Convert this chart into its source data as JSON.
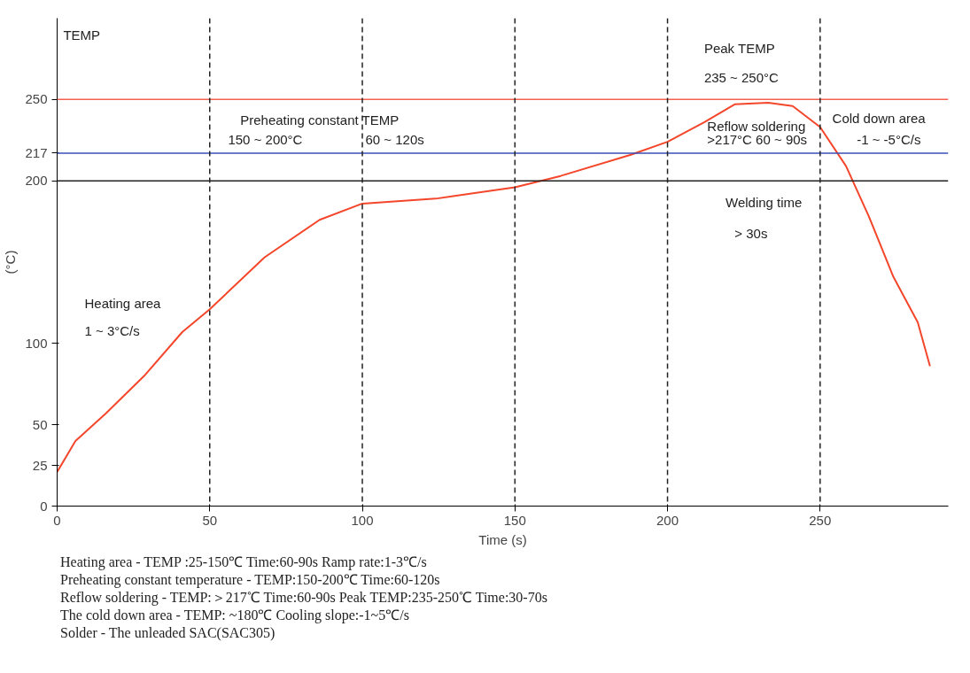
{
  "chart_data": {
    "type": "line",
    "ylabel": "(°C)",
    "xlabel": "Time (s)",
    "x": [
      0,
      6,
      16,
      28.5,
      41,
      50,
      68,
      86,
      100,
      124,
      150,
      165,
      188,
      200,
      212,
      222,
      233,
      241,
      250,
      258.5,
      266,
      274,
      282,
      286
    ],
    "series": [
      {
        "color": "#f4462a",
        "values": [
          21,
          40,
          57,
          80,
          107,
          121,
          153,
          176,
          186,
          189,
          196,
          203,
          216,
          224,
          236,
          247,
          248,
          246,
          233,
          209,
          178,
          141,
          113,
          86
        ]
      }
    ],
    "xlim": [
      0,
      292
    ],
    "ylim": [
      0,
      300
    ],
    "xticks": [
      0,
      50,
      100,
      150,
      200,
      250
    ],
    "yticks": [
      0,
      25,
      50,
      100,
      200,
      217,
      250
    ],
    "grid": false,
    "marker": "none",
    "line_style": "solid",
    "ref_lines": [
      {
        "axis": "y",
        "value": 250,
        "label": null,
        "color": "#f4614c",
        "line_style": "solid"
      },
      {
        "axis": "y",
        "value": 217,
        "label": null,
        "color": "#3a4fb8",
        "line_style": "solid"
      },
      {
        "axis": "y",
        "value": 200,
        "label": null,
        "color": "#222222",
        "line_style": "solid"
      },
      {
        "axis": "x",
        "value": 50,
        "label": null,
        "color": "#222222",
        "line_style": "dashed"
      },
      {
        "axis": "x",
        "value": 100,
        "label": null,
        "color": "#222222",
        "line_style": "dashed"
      },
      {
        "axis": "x",
        "value": 150,
        "label": null,
        "color": "#222222",
        "line_style": "dashed"
      },
      {
        "axis": "x",
        "value": 200,
        "label": null,
        "color": "#222222",
        "line_style": "dashed"
      },
      {
        "axis": "x",
        "value": 250,
        "label": null,
        "color": "#222222",
        "line_style": "dashed"
      }
    ],
    "annotations": [
      "TEMP",
      "Heating area",
      "1 ~ 3°C/s",
      "Preheating constant TEMP",
      "150 ~ 200°C",
      "60 ~ 120s",
      "Peak TEMP",
      "235 ~ 250°C",
      "Reflow soldering",
      ">217°C  60 ~ 90s",
      "Welding time",
      "> 30s",
      "Cold down area",
      "-1 ~ -5°C/s",
      "Heating area - TEMP :25-150℃ Time:60-90s Ramp rate:1-3℃/s",
      "Preheating constant temperature - TEMP:150-200℃ Time:60-120s",
      "Reflow soldering - TEMP:＞217℃ Time:60-90s Peak TEMP:235-250℃ Time:30-70s",
      "The cold down area - TEMP: ~180℃ Cooling slope:-1~5℃/s",
      "Solder - The unleaded SAC(SAC305)"
    ]
  }
}
